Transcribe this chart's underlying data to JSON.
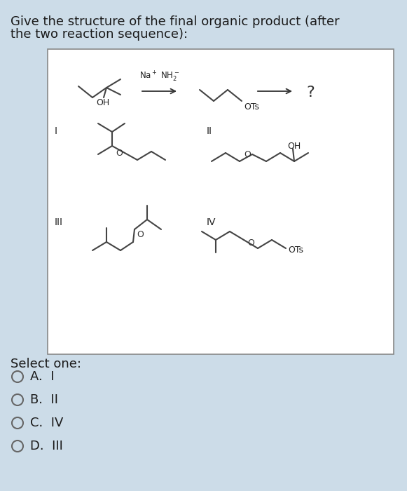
{
  "bg_color": "#ccdce8",
  "white_box_color": "#ffffff",
  "text_color": "#1a1a1a",
  "title_line1": "Give the structure of the final organic product (after",
  "title_line2": "the two reaction sequence):",
  "title_fontsize": 13,
  "select_one_text": "Select one:",
  "options": [
    "A.  I",
    "B.  II",
    "C.  IV",
    "D.  III"
  ],
  "option_fontsize": 13
}
